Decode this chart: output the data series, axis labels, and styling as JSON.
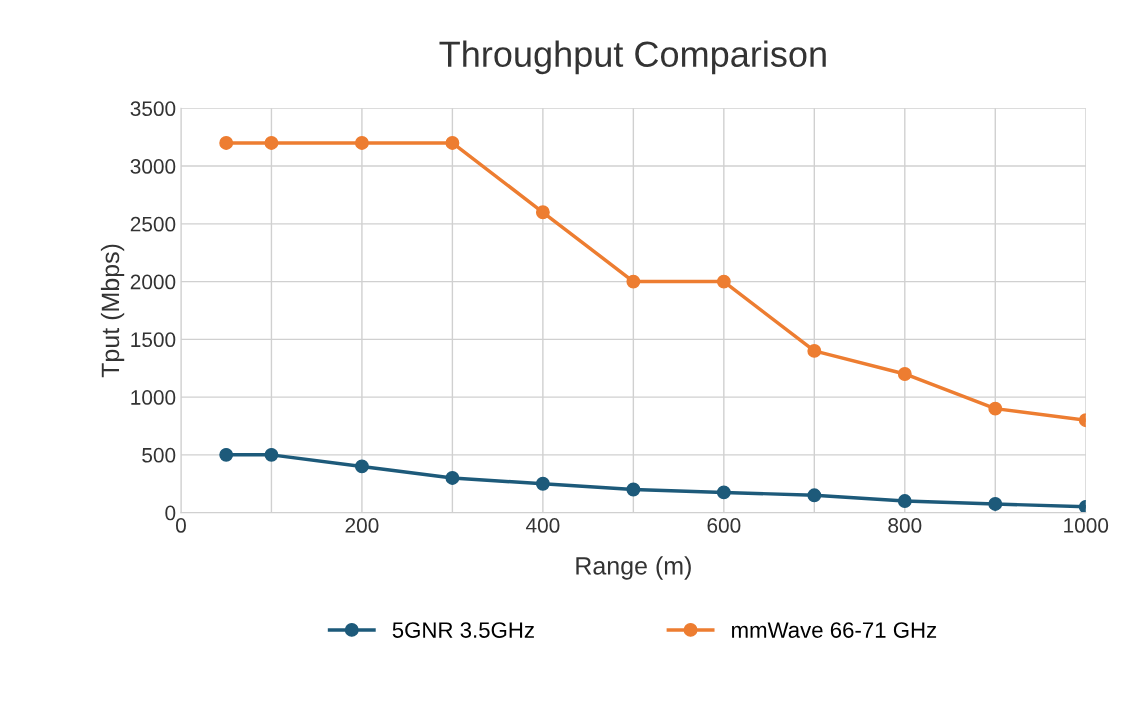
{
  "chart_data": {
    "type": "line",
    "title": "Throughput Comparison",
    "xlabel": "Range (m)",
    "ylabel": "Tput (Mbps)",
    "x": [
      50,
      100,
      200,
      300,
      400,
      500,
      600,
      700,
      800,
      900,
      1000
    ],
    "series": [
      {
        "name": "5GNR 3.5GHz",
        "color": "#1d5a7a",
        "values": [
          500,
          500,
          400,
          300,
          250,
          200,
          175,
          150,
          100,
          75,
          50
        ]
      },
      {
        "name": "mmWave 66-71 GHz",
        "color": "#ed7d31",
        "values": [
          3200,
          3200,
          3200,
          3200,
          2600,
          2000,
          2000,
          1400,
          1200,
          900,
          800
        ]
      }
    ],
    "xlim": [
      0,
      1000
    ],
    "xticks": [
      0,
      {
        "value": 100,
        "label": null
      },
      200,
      {
        "value": 300,
        "label": null
      },
      400,
      {
        "value": 500,
        "label": null
      },
      600,
      {
        "value": 700,
        "label": null
      },
      800,
      {
        "value": 900,
        "label": null
      },
      1000
    ],
    "ylim": [
      0,
      3500
    ],
    "yticks": [
      0,
      500,
      1000,
      1500,
      2000,
      2500,
      3000,
      3500
    ],
    "grid": true,
    "legend": "bottom",
    "marker": "circle",
    "line_style": "solid"
  }
}
